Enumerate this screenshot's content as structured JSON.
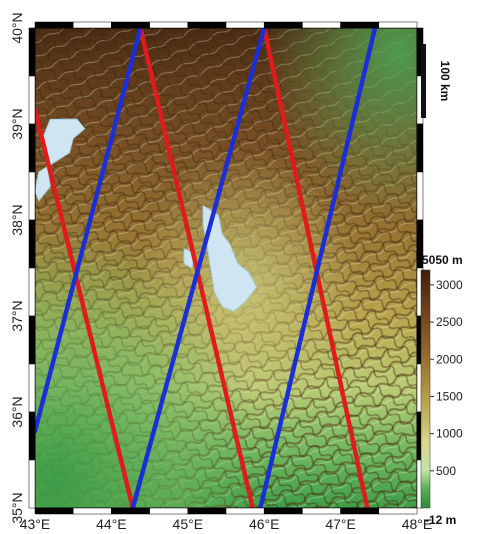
{
  "map": {
    "lon_ticks": [
      "43°E",
      "44°E",
      "45°E",
      "46°E",
      "47°E",
      "48°E"
    ],
    "lat_ticks": [
      "40°N",
      "39°N",
      "38°N",
      "37°N",
      "36°N",
      "35°N"
    ],
    "lon_range": [
      43,
      48
    ],
    "lat_range": [
      35,
      40
    ],
    "scale_bar_label": "100 km",
    "colorbar": {
      "max_label": "5050 m",
      "min_label": "-12 m",
      "tick_labels": [
        "3000",
        "2500",
        "2000",
        "1500",
        "1000",
        "500"
      ],
      "tick_values": [
        3000,
        2500,
        2000,
        1500,
        1000,
        500
      ],
      "display_range": [
        0,
        3200
      ]
    },
    "tracks": [
      {
        "color": "red",
        "points": [
          [
            43.0,
            39.15
          ],
          [
            44.28,
            35.0
          ]
        ]
      },
      {
        "color": "red",
        "points": [
          [
            44.38,
            40.0
          ],
          [
            45.85,
            35.0
          ]
        ]
      },
      {
        "color": "red",
        "points": [
          [
            46.0,
            40.0
          ],
          [
            47.35,
            35.0
          ]
        ]
      },
      {
        "color": "blue",
        "points": [
          [
            43.0,
            35.8
          ],
          [
            44.38,
            40.0
          ]
        ]
      },
      {
        "color": "blue",
        "points": [
          [
            44.28,
            35.0
          ],
          [
            46.0,
            40.0
          ]
        ]
      },
      {
        "color": "blue",
        "points": [
          [
            45.95,
            35.0
          ],
          [
            47.45,
            40.0
          ]
        ]
      }
    ],
    "lakes": [
      {
        "name_hidden": true,
        "polygon": [
          [
            43.2,
            39.05
          ],
          [
            43.55,
            39.05
          ],
          [
            43.65,
            38.95
          ],
          [
            43.5,
            38.85
          ],
          [
            43.45,
            38.7
          ],
          [
            43.25,
            38.6
          ],
          [
            43.05,
            38.5
          ],
          [
            43.0,
            38.3
          ],
          [
            43.05,
            38.2
          ],
          [
            43.2,
            38.35
          ],
          [
            43.15,
            38.6
          ],
          [
            43.1,
            38.85
          ]
        ]
      },
      {
        "name_hidden": true,
        "polygon": [
          [
            45.2,
            38.15
          ],
          [
            45.4,
            38.05
          ],
          [
            45.45,
            37.85
          ],
          [
            45.55,
            37.75
          ],
          [
            45.65,
            37.55
          ],
          [
            45.8,
            37.45
          ],
          [
            45.9,
            37.3
          ],
          [
            45.75,
            37.15
          ],
          [
            45.6,
            37.05
          ],
          [
            45.45,
            37.1
          ],
          [
            45.35,
            37.25
          ],
          [
            45.3,
            37.5
          ],
          [
            45.25,
            37.75
          ],
          [
            45.2,
            37.95
          ]
        ]
      },
      {
        "name_hidden": true,
        "polygon": [
          [
            44.95,
            37.7
          ],
          [
            45.1,
            37.65
          ],
          [
            45.05,
            37.5
          ],
          [
            44.95,
            37.55
          ]
        ]
      }
    ],
    "colors": {
      "red_track": "#e01b1b",
      "blue_track": "#1a2fd6",
      "water": "#cfe6f2",
      "frame": "#000000"
    }
  }
}
